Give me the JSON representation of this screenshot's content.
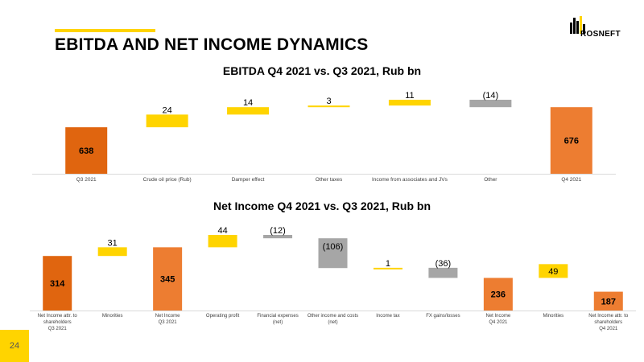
{
  "header": {
    "title": "EBITDA AND NET INCOME DYNAMICS",
    "logo_text": "ROSNEFT"
  },
  "colors": {
    "accent": "#ffd400",
    "orange": "#ed7d31",
    "dark_orange": "#e0650f",
    "yellow": "#ffd400",
    "gray": "#a6a6a6"
  },
  "page_number": "24",
  "chart_data": [
    {
      "type": "bar",
      "subtype": "waterfall",
      "title": "EBITDA Q4 2021 vs. Q3 2021, Rub bn",
      "categories": [
        "Q3 2021",
        "Crude oil price (Rub)",
        "Damper effect",
        "Other taxes",
        "Income from associates and JVs",
        "Other",
        "Q4 2021"
      ],
      "values": [
        638,
        24,
        14,
        3,
        11,
        -14,
        676
      ],
      "labels": [
        "638",
        "24",
        "14",
        "3",
        "11",
        "(14)",
        "676"
      ],
      "bar_kind": [
        "total",
        "delta",
        "delta",
        "delta",
        "delta",
        "delta",
        "total"
      ],
      "bar_colors": [
        "#e0650f",
        "#ffd400",
        "#ffd400",
        "#ffd400",
        "#ffd400",
        "#a6a6a6",
        "#ed7d31"
      ]
    },
    {
      "type": "bar",
      "subtype": "waterfall",
      "title": "Net Income Q4 2021 vs. Q3 2021, Rub bn",
      "categories": [
        [
          "Net Income attr. to",
          "shareholders",
          "Q3 2021"
        ],
        [
          "Minorities"
        ],
        [
          "Net Income",
          "Q3 2021"
        ],
        [
          "Operating profit"
        ],
        [
          "Financial expenses",
          "(net)"
        ],
        [
          "Other income and costs",
          "(net)"
        ],
        [
          "Income tax"
        ],
        [
          "FX gains/losses"
        ],
        [
          "Net Income",
          "Q4 2021"
        ],
        [
          "Minorities"
        ],
        [
          "Net Income attr. to",
          "shareholders",
          "Q4 2021"
        ]
      ],
      "values": [
        314,
        31,
        345,
        44,
        -12,
        -106,
        1,
        -36,
        236,
        49,
        187
      ],
      "labels": [
        "314",
        "31",
        "345",
        "44",
        "(12)",
        "(106)",
        "1",
        "(36)",
        "236",
        "49",
        "187"
      ],
      "bar_kind": [
        "total",
        "delta",
        "total",
        "delta",
        "delta",
        "delta",
        "delta",
        "delta",
        "total",
        "delta",
        "total"
      ],
      "bar_colors": [
        "#e0650f",
        "#ffd400",
        "#ed7d31",
        "#ffd400",
        "#a6a6a6",
        "#a6a6a6",
        "#ffd400",
        "#a6a6a6",
        "#ed7d31",
        "#ffd400",
        "#ed7d31"
      ]
    }
  ]
}
